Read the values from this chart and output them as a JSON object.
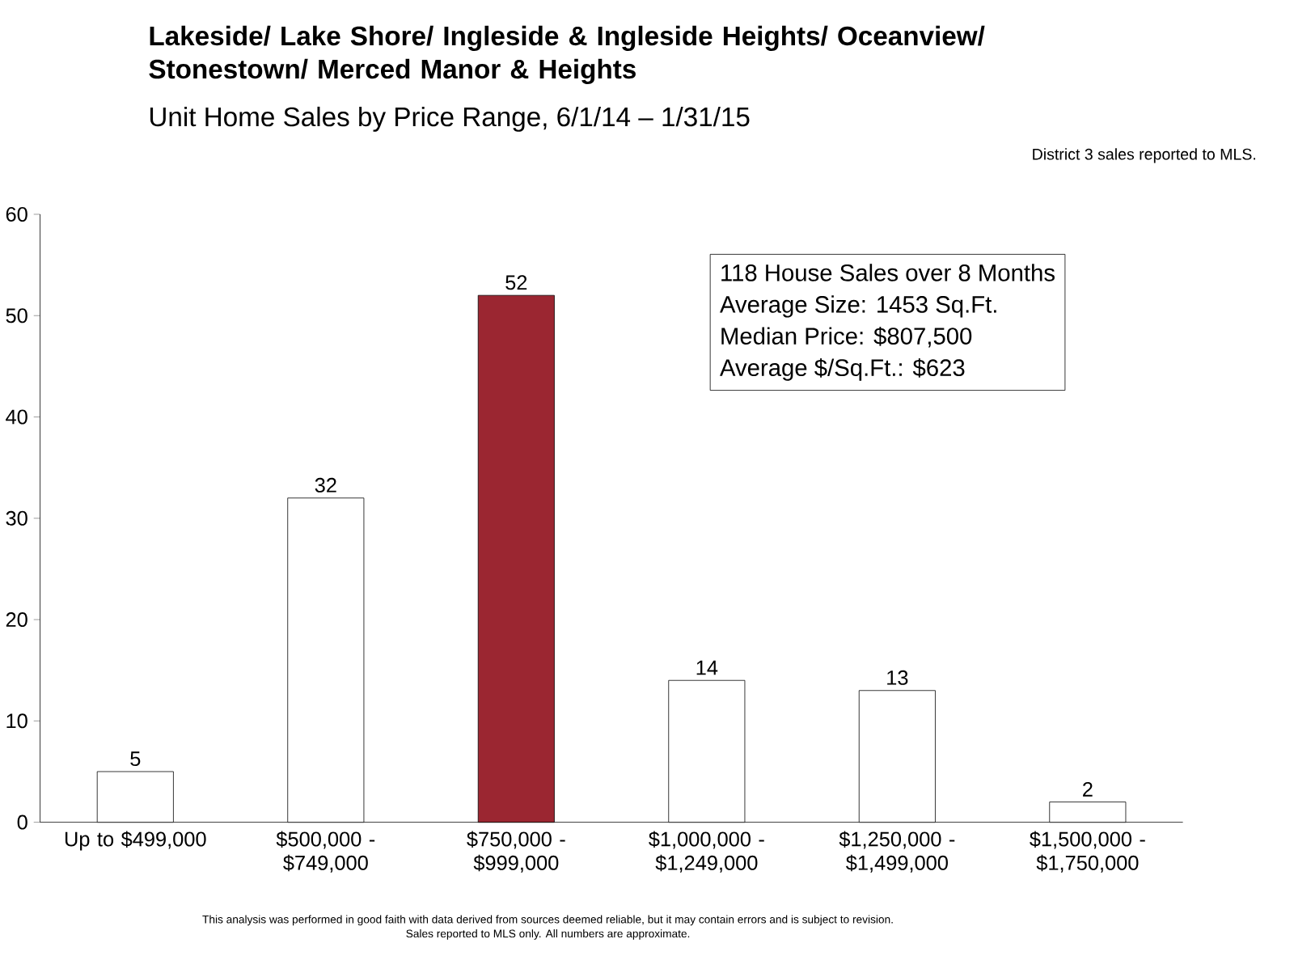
{
  "chart_data": {
    "type": "bar",
    "title": "Lakeside/ Lake Shore/ Ingleside & Ingleside Heights/ Oceanview/ Stonestown/ Merced Manor & Heights",
    "subtitle": "Unit Home Sales by Price Range, 6/1/14 – 1/31/15",
    "categories": [
      "Up to $499,000",
      "$500,000 - $749,000",
      "$750,000 - $999,000",
      "$1,000,000 - $1,249,000",
      "$1,250,000 - $1,499,000",
      "$1,500,000 - $1,750,000"
    ],
    "values": [
      5,
      32,
      52,
      14,
      13,
      2
    ],
    "colors": [
      "#ffffff",
      "#ffffff",
      "#9b2631",
      "#ffffff",
      "#ffffff",
      "#ffffff"
    ],
    "ylim": [
      0,
      60
    ],
    "yticks": [
      0,
      10,
      20,
      30,
      40,
      50,
      60
    ],
    "data_labels": true,
    "annotations": [
      "118 House Sales over 8 Months",
      "Average Size: 1453 Sq.Ft.",
      "Median Price:  $807,500",
      "Average $/Sq.Ft.: $623",
      "District 3 sales reported to MLS.",
      "This analysis was performed in good faith with data derived from sources deemed reliable, but it may contain errors and is subject to revision.",
      "Sales reported to MLS only. All numbers are approximate."
    ]
  }
}
